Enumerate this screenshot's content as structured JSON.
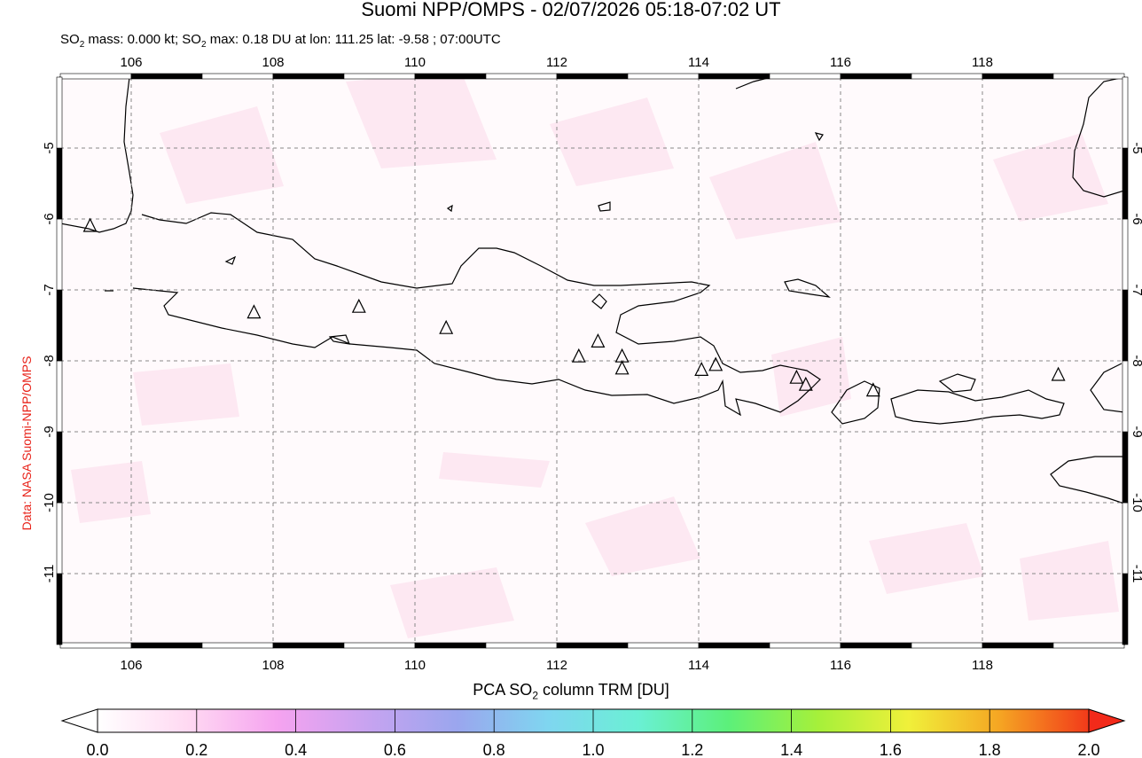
{
  "title": "Suomi NPP/OMPS - 02/07/2026 05:18-07:02 UT",
  "subtitle": {
    "prefix": "SO",
    "sub": "2",
    "mid": " mass: 0.000 kt; SO",
    "sub2": "2",
    "rest": " max: 0.18 DU at lon: 111.25 lat: -9.58 ; 07:00UTC"
  },
  "credit": "Data: NASA Suomi-NPP/OMPS",
  "map": {
    "lon_range": [
      105.0,
      120.0
    ],
    "lat_range": [
      -12.0,
      -4.0
    ],
    "lon_ticks": [
      "106",
      "108",
      "110",
      "112",
      "114",
      "116",
      "118"
    ],
    "lat_ticks": [
      "-5",
      "-6",
      "-7",
      "-8",
      "-9",
      "-10",
      "-11"
    ],
    "grid": "dashed",
    "volcanoes": [
      {
        "lon": 105.42,
        "lat": -6.1
      },
      {
        "lon": 107.73,
        "lat": -7.32
      },
      {
        "lon": 109.21,
        "lat": -7.24
      },
      {
        "lon": 110.44,
        "lat": -7.54
      },
      {
        "lon": 112.31,
        "lat": -7.94
      },
      {
        "lon": 112.58,
        "lat": -7.73
      },
      {
        "lon": 112.92,
        "lat": -7.94
      },
      {
        "lon": 112.92,
        "lat": -8.11
      },
      {
        "lon": 114.04,
        "lat": -8.13
      },
      {
        "lon": 114.24,
        "lat": -8.06
      },
      {
        "lon": 115.38,
        "lat": -8.24
      },
      {
        "lon": 115.51,
        "lat": -8.34
      },
      {
        "lon": 116.46,
        "lat": -8.42
      },
      {
        "lon": 119.07,
        "lat": -8.2
      }
    ]
  },
  "colorbar": {
    "title_prefix": "PCA SO",
    "title_sub": "2",
    "title_rest": " column TRM [DU]",
    "ticks": [
      "0.0",
      "0.2",
      "0.4",
      "0.6",
      "0.8",
      "1.0",
      "1.2",
      "1.4",
      "1.6",
      "1.8",
      "2.0"
    ],
    "min": 0.0,
    "max": 2.0,
    "colors": [
      "#ffffff",
      "#ffd9f2",
      "#f5a3f0",
      "#c7a3f0",
      "#9aa6ee",
      "#7fd6f0",
      "#6af0d4",
      "#5cf07a",
      "#a6f03a",
      "#f0f03a",
      "#f5a623",
      "#f23a1a"
    ]
  }
}
